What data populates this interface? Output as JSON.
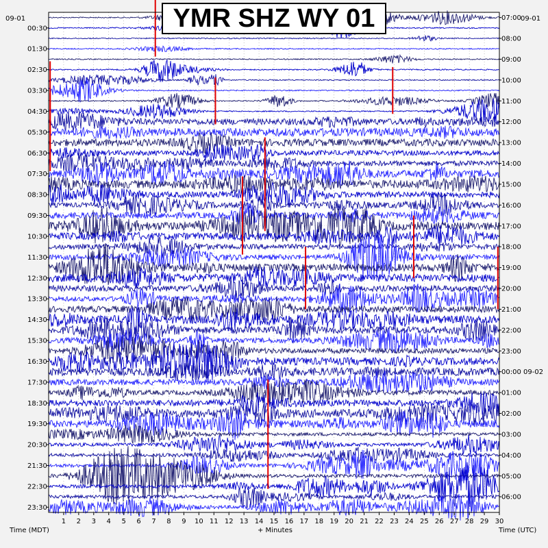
{
  "chart_data": {
    "type": "line",
    "title": "YMR SHZ WY 01",
    "xlabel": "+ Minutes",
    "left_axis_title": "Time (MDT)",
    "right_axis_title": "Time (UTC)",
    "xlim": [
      0,
      30
    ],
    "x_ticks": [
      1,
      2,
      3,
      4,
      5,
      6,
      7,
      8,
      9,
      10,
      11,
      12,
      13,
      14,
      15,
      16,
      17,
      18,
      19,
      20,
      21,
      22,
      23,
      24,
      25,
      26,
      27,
      28,
      29,
      30
    ],
    "left_start_label": "09-01",
    "right_start_label": "09-01",
    "left_labels": [
      "00:30",
      "01:30",
      "02:30",
      "03:30",
      "04:30",
      "05:30",
      "06:30",
      "07:30",
      "08:30",
      "09:30",
      "10:30",
      "11:30",
      "12:30",
      "13:30",
      "14:30",
      "15:30",
      "16:30",
      "17:30",
      "18:30",
      "19:30",
      "20:30",
      "21:30",
      "22:30",
      "23:30"
    ],
    "right_labels": [
      "07:00",
      "08:00",
      "09:00",
      "10:00",
      "11:00",
      "12:00",
      "13:00",
      "14:00",
      "15:00",
      "16:00",
      "17:00",
      "18:00",
      "19:00",
      "20:00",
      "21:00",
      "22:00",
      "23:00",
      "00:00 09-02",
      "01:00",
      "02:00",
      "03:00",
      "04:00",
      "05:00",
      "06:00"
    ],
    "trace_count": 48,
    "trace_colors": [
      "#1a1a6e",
      "#0000cc",
      "#1010a0",
      "#2222ff"
    ],
    "event_color": "#e00000",
    "grid": true,
    "events": [
      {
        "trace": 0,
        "minute": 7.1,
        "amplitude": 2.5
      },
      {
        "trace": 7,
        "minute": 22.9,
        "amplitude": 1.5
      },
      {
        "trace": 8,
        "minute": 11.1,
        "amplitude": 1.5
      },
      {
        "trace": 9,
        "minute": 0.1,
        "amplitude": 3.2
      },
      {
        "trace": 11,
        "minute": 0.1,
        "amplitude": 2.5
      },
      {
        "trace": 16,
        "minute": 14.4,
        "amplitude": 3.0
      },
      {
        "trace": 19,
        "minute": 12.9,
        "amplitude": 2.5
      },
      {
        "trace": 22,
        "minute": 24.3,
        "amplitude": 2.0
      },
      {
        "trace": 25,
        "minute": 17.1,
        "amplitude": 2.0
      },
      {
        "trace": 25,
        "minute": 29.9,
        "amplitude": 2.0
      },
      {
        "trace": 40,
        "minute": 14.6,
        "amplitude": 3.5
      }
    ]
  }
}
